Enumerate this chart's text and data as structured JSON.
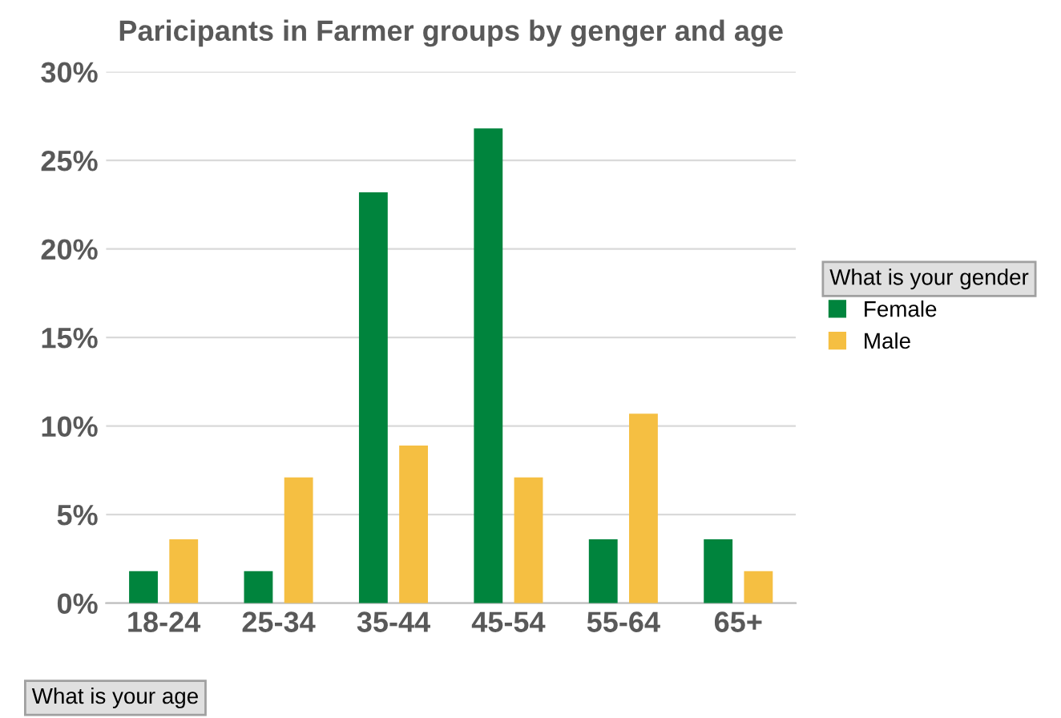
{
  "chart_data": {
    "type": "bar",
    "title": "Paricipants in Farmer groups by genger and age",
    "xlabel": "What is your age",
    "legend_title": "What is your gender",
    "categories": [
      "18-24",
      "25-34",
      "35-44",
      "45-54",
      "55-64",
      "65+"
    ],
    "series": [
      {
        "name": "Female",
        "color": "#00843d",
        "values": [
          1.8,
          1.8,
          23.2,
          26.8,
          3.6,
          3.6
        ]
      },
      {
        "name": "Male",
        "color": "#f5bf42",
        "values": [
          3.6,
          7.1,
          8.9,
          7.1,
          10.7,
          1.8
        ]
      }
    ],
    "ylim": [
      0,
      30
    ],
    "yticks": [
      {
        "value": 0,
        "label": "0%"
      },
      {
        "value": 5,
        "label": "5%"
      },
      {
        "value": 10,
        "label": "10%"
      },
      {
        "value": 15,
        "label": "15%"
      },
      {
        "value": 20,
        "label": "20%"
      },
      {
        "value": 25,
        "label": "25%"
      },
      {
        "value": 30,
        "label": "30%"
      }
    ],
    "grid": "y",
    "legend": "right"
  }
}
